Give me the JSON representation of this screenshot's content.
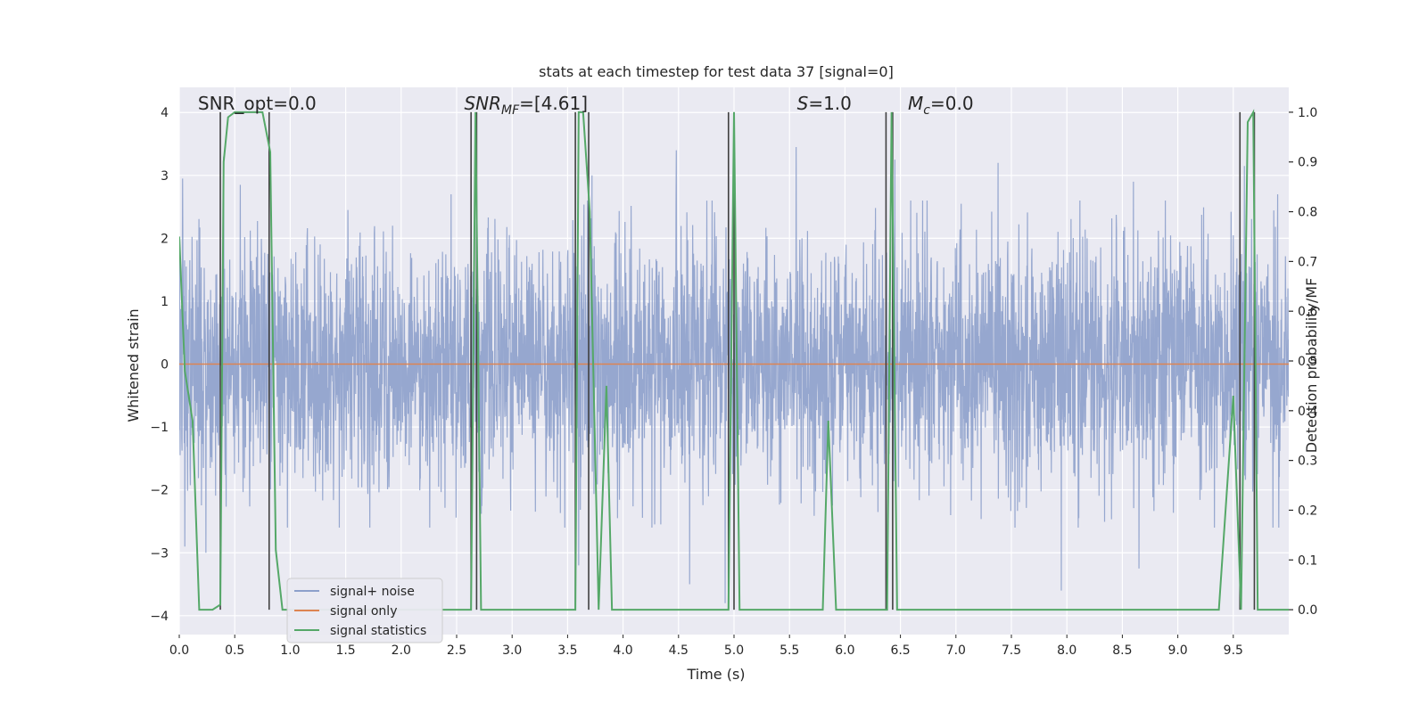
{
  "chart_data": {
    "type": "line",
    "title": "stats at each timestep for test data 37 [signal=0]",
    "xlabel": "Time (s)",
    "ylabel_left": "Whitened strain",
    "ylabel_right": "Detection probability/MF",
    "xlim": [
      0,
      10
    ],
    "ylim_left": [
      -4.3,
      4.4
    ],
    "ylim_right": [
      -0.05,
      1.05
    ],
    "x_ticks": [
      0.0,
      0.5,
      1.0,
      1.5,
      2.0,
      2.5,
      3.0,
      3.5,
      4.0,
      4.5,
      5.0,
      5.5,
      6.0,
      6.5,
      7.0,
      7.5,
      8.0,
      8.5,
      9.0,
      9.5
    ],
    "x_tick_labels": [
      "0.0",
      "0.5",
      "1.0",
      "1.5",
      "2.0",
      "2.5",
      "3.0",
      "3.5",
      "4.0",
      "4.5",
      "5.0",
      "5.5",
      "6.0",
      "6.5",
      "7.0",
      "7.5",
      "8.0",
      "8.5",
      "9.0",
      "9.5"
    ],
    "left_ticks": [
      -4,
      -3,
      -2,
      -1,
      0,
      1,
      2,
      3,
      4
    ],
    "left_tick_labels": [
      "−4",
      "−3",
      "−2",
      "−1",
      "0",
      "1",
      "2",
      "3",
      "4"
    ],
    "right_ticks": [
      0.0,
      0.1,
      0.2,
      0.3,
      0.4,
      0.5,
      0.6,
      0.7,
      0.8,
      0.9,
      1.0
    ],
    "right_tick_labels": [
      "0.0",
      "0.1",
      "0.2",
      "0.3",
      "0.4",
      "0.5",
      "0.6",
      "0.7",
      "0.8",
      "0.9",
      "1.0"
    ],
    "grid": true,
    "background": "#eaeaf2",
    "annotations": [
      {
        "text": "SNR_opt=0.0",
        "x": 0.2,
        "y_right": 1.0
      },
      {
        "text": "SNR_MF=[4.61]",
        "x": 2.6,
        "y_right": 1.0
      },
      {
        "text": "S=1.0",
        "x": 5.6,
        "y_right": 1.0
      },
      {
        "text": "M_c=0.0",
        "x": 6.6,
        "y_right": 1.0
      }
    ],
    "series": [
      {
        "name": "signal+ noise",
        "axis": "left",
        "color": "#8da0cb",
        "kind": "noise",
        "sample_rate": 400,
        "seed": 37,
        "amplitude_std": 0.95,
        "spikes": [
          {
            "x": 0.03,
            "y": 2.95
          },
          {
            "x": 0.05,
            "y": -2.9
          },
          {
            "x": 0.4,
            "y": 3.3
          },
          {
            "x": 0.55,
            "y": 2.85
          },
          {
            "x": 0.24,
            "y": -3.0
          },
          {
            "x": 1.52,
            "y": 2.45
          },
          {
            "x": 2.45,
            "y": 2.7
          },
          {
            "x": 3.6,
            "y": -3.2
          },
          {
            "x": 3.72,
            "y": 3.0
          },
          {
            "x": 4.48,
            "y": 3.4
          },
          {
            "x": 4.6,
            "y": -3.5
          },
          {
            "x": 4.92,
            "y": -3.8
          },
          {
            "x": 5.56,
            "y": 3.45
          },
          {
            "x": 6.45,
            "y": 3.25
          },
          {
            "x": 7.38,
            "y": 3.2
          },
          {
            "x": 7.95,
            "y": -3.6
          },
          {
            "x": 8.65,
            "y": -3.25
          },
          {
            "x": 9.6,
            "y": 3.15
          },
          {
            "x": 9.9,
            "y": 2.7
          },
          {
            "x": 8.6,
            "y": 2.9
          }
        ]
      },
      {
        "name": "signal only",
        "axis": "left",
        "color": "#dd8452",
        "x": [
          0,
          10
        ],
        "y": [
          0,
          0
        ]
      },
      {
        "name": "signal statistics",
        "axis": "right",
        "color": "#55a868",
        "x": [
          0.0,
          0.05,
          0.12,
          0.18,
          0.3,
          0.37,
          0.4,
          0.44,
          0.5,
          0.6,
          0.75,
          0.82,
          0.87,
          0.93,
          2.63,
          2.67,
          2.72,
          3.57,
          3.6,
          3.64,
          3.7,
          3.78,
          3.85,
          3.9,
          4.95,
          5.0,
          5.05,
          5.8,
          5.85,
          5.92,
          6.38,
          6.42,
          6.47,
          9.37,
          9.5,
          9.57,
          9.63,
          9.68,
          9.72,
          10.0
        ],
        "y": [
          0.75,
          0.48,
          0.38,
          0.0,
          0.0,
          0.01,
          0.9,
          0.99,
          1.0,
          1.0,
          1.0,
          0.92,
          0.12,
          0.0,
          0.0,
          1.0,
          0.0,
          0.0,
          1.0,
          1.0,
          0.8,
          0.0,
          0.45,
          0.0,
          0.0,
          1.0,
          0.0,
          0.0,
          0.38,
          0.0,
          0.0,
          1.0,
          0.0,
          0.0,
          0.43,
          0.0,
          0.98,
          1.0,
          0.0,
          0.0
        ]
      }
    ],
    "vertical_lines": {
      "color": "#404040",
      "axis": "right",
      "from": 0.0,
      "to": 1.0,
      "x": [
        0.37,
        0.81,
        2.63,
        2.68,
        3.57,
        3.69,
        4.95,
        5.0,
        6.37,
        6.43,
        9.56,
        9.69
      ]
    },
    "legend": {
      "position": "lower-left",
      "entries": [
        "signal+ noise",
        "signal only",
        "signal statistics"
      ]
    }
  }
}
